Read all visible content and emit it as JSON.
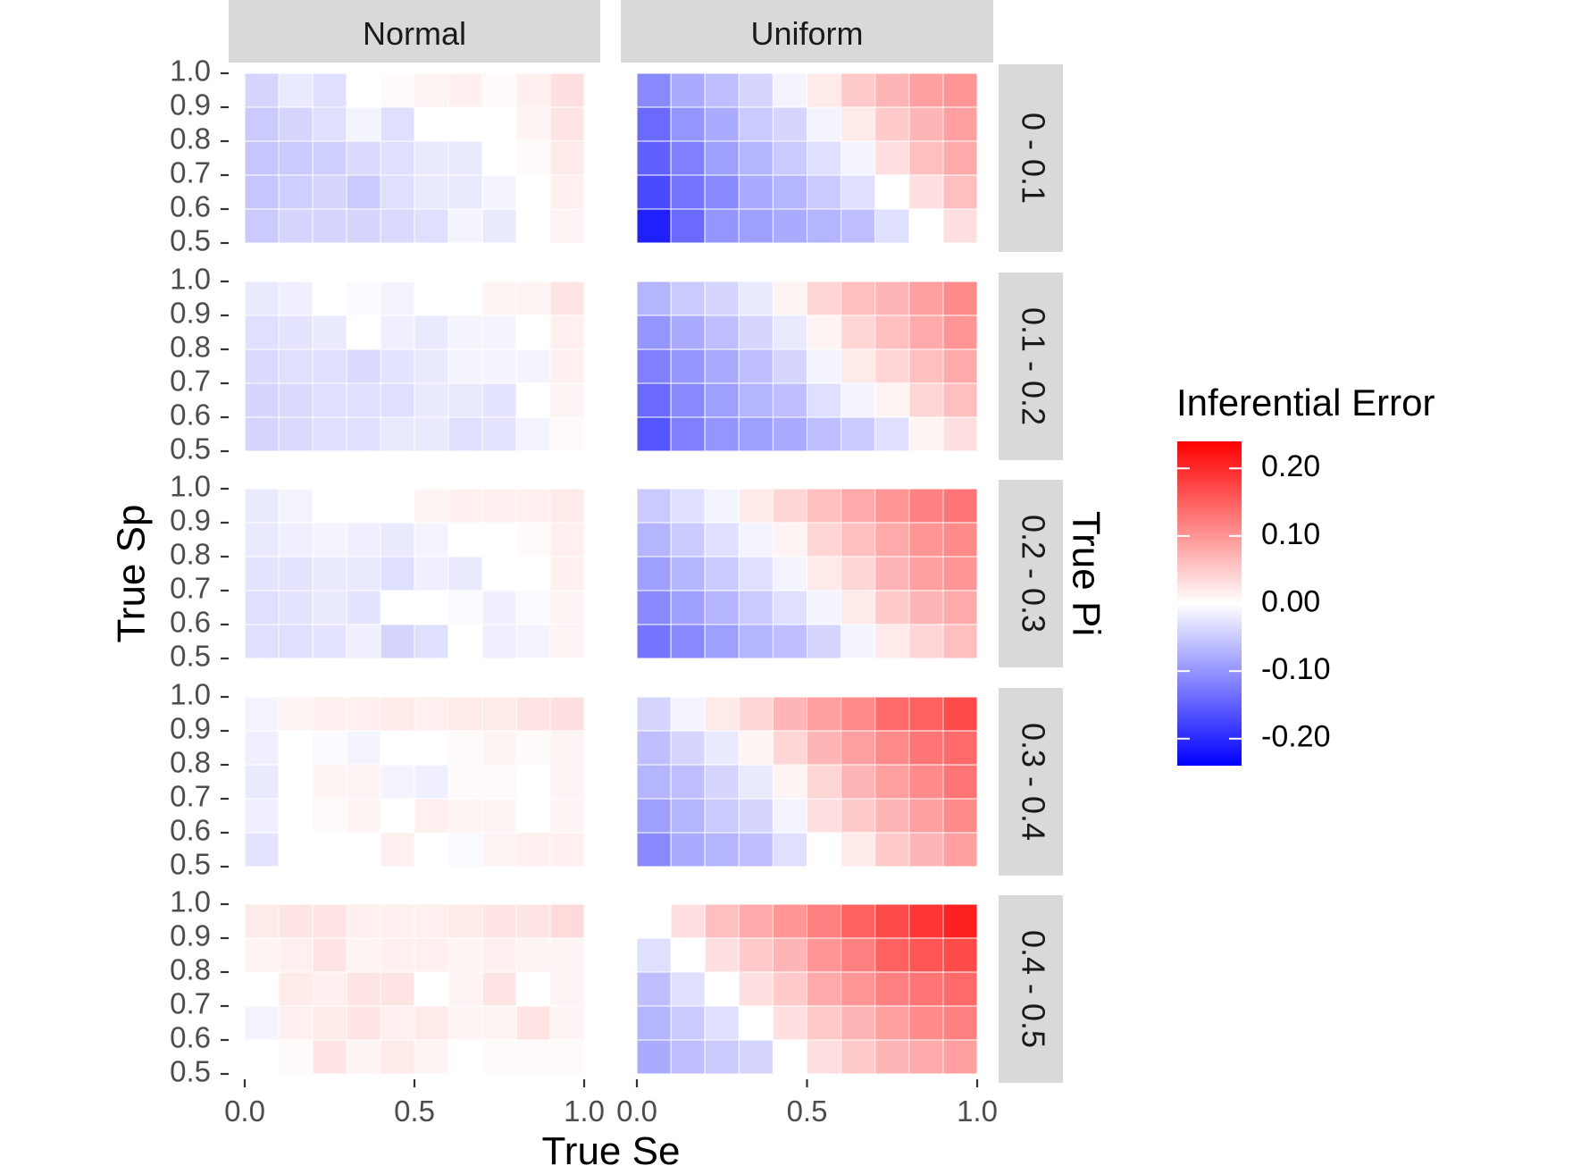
{
  "chart_data": {
    "type": "heatmap",
    "xlabel": "True Se",
    "ylabel": "True Sp",
    "facet_row_label": "True Pi",
    "facet_columns": [
      "Normal",
      "Uniform"
    ],
    "facet_rows": [
      "0 - 0.1",
      "0.1 - 0.2",
      "0.2 - 0.3",
      "0.3 - 0.4",
      "0.4 - 0.5"
    ],
    "x_ticks": [
      "0.0",
      "0.5",
      "1.0"
    ],
    "y_ticks": [
      "0.5",
      "0.6",
      "0.7",
      "0.8",
      "0.9",
      "1.0"
    ],
    "x_values": [
      0.0,
      0.1,
      0.2,
      0.3,
      0.4,
      0.5,
      0.6,
      0.7,
      0.8,
      0.9
    ],
    "y_values": [
      0.5,
      0.6,
      0.7,
      0.8,
      0.9
    ],
    "xlim": [
      0,
      1
    ],
    "ylim": [
      0.5,
      1.0
    ],
    "legend": {
      "title": "Inferential Error",
      "position": "right",
      "range": [
        -0.24,
        0.24
      ],
      "breaks": [
        "0.20",
        "0.10",
        "0.00",
        "-0.10",
        "-0.20"
      ],
      "break_values": [
        0.2,
        0.1,
        0.0,
        -0.1,
        -0.2
      ],
      "low_color": "#0000FF",
      "mid_color": "#FFFFFF",
      "high_color": "#FF0000"
    },
    "panels": [
      {
        "column": "Normal",
        "row": "0 - 0.1",
        "values": [
          [
            -0.05,
            -0.04,
            -0.04,
            -0.04,
            -0.035,
            -0.03,
            -0.01,
            -0.02,
            0.0,
            0.01
          ],
          [
            -0.055,
            -0.045,
            -0.04,
            -0.05,
            -0.03,
            -0.02,
            -0.02,
            -0.01,
            0.0,
            0.015
          ],
          [
            -0.055,
            -0.05,
            -0.045,
            -0.035,
            -0.03,
            -0.02,
            -0.02,
            0.0,
            0.005,
            0.02
          ],
          [
            -0.05,
            -0.04,
            -0.03,
            -0.01,
            -0.03,
            0.0,
            0.0,
            0.0,
            0.01,
            0.025
          ],
          [
            -0.04,
            -0.02,
            -0.03,
            0.0,
            0.005,
            0.01,
            0.015,
            0.005,
            0.015,
            0.03
          ]
        ]
      },
      {
        "column": "Uniform",
        "row": "0 - 0.1",
        "values": [
          [
            -0.21,
            -0.14,
            -0.1,
            -0.09,
            -0.08,
            -0.07,
            -0.06,
            -0.03,
            0.0,
            0.03
          ],
          [
            -0.17,
            -0.13,
            -0.11,
            -0.08,
            -0.07,
            -0.05,
            -0.03,
            0.0,
            0.03,
            0.06
          ],
          [
            -0.15,
            -0.12,
            -0.09,
            -0.07,
            -0.05,
            -0.03,
            -0.01,
            0.03,
            0.06,
            0.08
          ],
          [
            -0.14,
            -0.1,
            -0.08,
            -0.05,
            -0.04,
            -0.01,
            0.02,
            0.05,
            0.07,
            0.09
          ],
          [
            -0.11,
            -0.08,
            -0.06,
            -0.04,
            -0.01,
            0.02,
            0.05,
            0.07,
            0.09,
            0.1
          ]
        ]
      },
      {
        "column": "Normal",
        "row": "0.1 - 0.2",
        "values": [
          [
            -0.04,
            -0.035,
            -0.03,
            -0.03,
            -0.02,
            -0.02,
            -0.03,
            -0.025,
            -0.01,
            0.005
          ],
          [
            -0.04,
            -0.035,
            -0.03,
            -0.03,
            -0.03,
            -0.02,
            -0.02,
            -0.025,
            0.0,
            0.01
          ],
          [
            -0.035,
            -0.03,
            -0.03,
            -0.035,
            -0.025,
            -0.02,
            -0.01,
            -0.01,
            -0.01,
            0.015
          ],
          [
            -0.03,
            -0.025,
            -0.02,
            0.0,
            -0.015,
            -0.02,
            -0.01,
            -0.01,
            0.0,
            0.015
          ],
          [
            -0.02,
            -0.015,
            0.0,
            -0.005,
            -0.01,
            0.0,
            0.0,
            0.01,
            0.01,
            0.025
          ]
        ]
      },
      {
        "column": "Uniform",
        "row": "0.1 - 0.2",
        "values": [
          [
            -0.16,
            -0.12,
            -0.1,
            -0.09,
            -0.08,
            -0.06,
            -0.05,
            -0.03,
            0.01,
            0.03
          ],
          [
            -0.14,
            -0.11,
            -0.09,
            -0.07,
            -0.06,
            -0.03,
            -0.01,
            0.01,
            0.04,
            0.06
          ],
          [
            -0.12,
            -0.1,
            -0.08,
            -0.06,
            -0.04,
            -0.01,
            0.02,
            0.04,
            0.06,
            0.08
          ],
          [
            -0.1,
            -0.08,
            -0.06,
            -0.04,
            -0.02,
            0.01,
            0.04,
            0.06,
            0.08,
            0.1
          ],
          [
            -0.07,
            -0.05,
            -0.04,
            -0.02,
            0.01,
            0.04,
            0.06,
            0.07,
            0.09,
            0.11
          ]
        ]
      },
      {
        "column": "Normal",
        "row": "0.2 - 0.3",
        "values": [
          [
            -0.03,
            -0.03,
            -0.025,
            -0.015,
            -0.04,
            -0.03,
            0.0,
            -0.015,
            -0.01,
            0.01
          ],
          [
            -0.03,
            -0.025,
            -0.02,
            -0.025,
            0.0,
            0.0,
            -0.005,
            -0.015,
            -0.005,
            0.01
          ],
          [
            -0.025,
            -0.025,
            -0.02,
            -0.02,
            -0.03,
            -0.015,
            -0.02,
            0.0,
            0.0,
            0.015
          ],
          [
            -0.02,
            -0.015,
            -0.01,
            -0.015,
            -0.02,
            -0.01,
            0.0,
            0.0,
            0.005,
            0.015
          ],
          [
            -0.02,
            -0.01,
            0.0,
            0.0,
            0.0,
            0.01,
            0.015,
            0.015,
            0.015,
            0.02
          ]
        ]
      },
      {
        "column": "Uniform",
        "row": "0.2 - 0.3",
        "values": [
          [
            -0.13,
            -0.11,
            -0.09,
            -0.07,
            -0.06,
            -0.04,
            -0.01,
            0.02,
            0.04,
            0.06
          ],
          [
            -0.11,
            -0.09,
            -0.07,
            -0.05,
            -0.03,
            -0.01,
            0.02,
            0.05,
            0.07,
            0.08
          ],
          [
            -0.09,
            -0.07,
            -0.05,
            -0.03,
            -0.01,
            0.02,
            0.04,
            0.07,
            0.09,
            0.1
          ],
          [
            -0.07,
            -0.05,
            -0.03,
            -0.01,
            0.01,
            0.04,
            0.06,
            0.08,
            0.1,
            0.11
          ],
          [
            -0.05,
            -0.03,
            -0.01,
            0.02,
            0.04,
            0.06,
            0.08,
            0.1,
            0.12,
            0.13
          ]
        ]
      },
      {
        "column": "Normal",
        "row": "0.3 - 0.4",
        "values": [
          [
            -0.025,
            0.0,
            0.0,
            0.0,
            0.015,
            0.0,
            -0.005,
            0.01,
            0.015,
            0.015
          ],
          [
            -0.015,
            0.0,
            0.005,
            0.01,
            0.0,
            0.015,
            0.01,
            0.01,
            0.0,
            0.01
          ],
          [
            -0.02,
            0.0,
            0.01,
            0.01,
            -0.01,
            -0.015,
            0.005,
            0.005,
            0.0,
            0.01
          ],
          [
            -0.015,
            0.0,
            -0.005,
            -0.01,
            0.0,
            0.0,
            0.005,
            0.01,
            0.005,
            0.01
          ],
          [
            -0.01,
            0.01,
            0.015,
            0.015,
            0.02,
            0.015,
            0.02,
            0.02,
            0.025,
            0.03
          ]
        ]
      },
      {
        "column": "Uniform",
        "row": "0.3 - 0.4",
        "values": [
          [
            -0.11,
            -0.08,
            -0.07,
            -0.06,
            -0.03,
            0.0,
            0.02,
            0.05,
            0.07,
            0.09
          ],
          [
            -0.09,
            -0.07,
            -0.05,
            -0.04,
            -0.01,
            0.03,
            0.05,
            0.07,
            0.09,
            0.11
          ],
          [
            -0.07,
            -0.06,
            -0.04,
            -0.02,
            0.01,
            0.04,
            0.07,
            0.09,
            0.11,
            0.13
          ],
          [
            -0.06,
            -0.04,
            -0.02,
            0.01,
            0.04,
            0.07,
            0.09,
            0.11,
            0.13,
            0.14
          ],
          [
            -0.04,
            -0.01,
            0.02,
            0.04,
            0.07,
            0.09,
            0.11,
            0.14,
            0.15,
            0.17
          ]
        ]
      },
      {
        "column": "Normal",
        "row": "0.4 - 0.5",
        "values": [
          [
            0.0,
            0.005,
            0.025,
            0.01,
            0.02,
            0.01,
            0.0,
            0.005,
            0.005,
            0.005
          ],
          [
            -0.01,
            0.015,
            0.02,
            0.025,
            0.015,
            0.02,
            0.01,
            0.01,
            0.025,
            0.01
          ],
          [
            0.0,
            0.02,
            0.015,
            0.025,
            0.025,
            0.0,
            0.01,
            0.025,
            0.0,
            0.01
          ],
          [
            0.01,
            0.015,
            0.025,
            0.01,
            0.015,
            0.015,
            0.01,
            0.015,
            0.01,
            0.01
          ],
          [
            0.02,
            0.025,
            0.025,
            0.015,
            0.015,
            0.015,
            0.02,
            0.025,
            0.025,
            0.035
          ]
        ]
      },
      {
        "column": "Uniform",
        "row": "0.4 - 0.5",
        "values": [
          [
            -0.08,
            -0.06,
            -0.05,
            -0.04,
            0.0,
            0.03,
            0.05,
            0.07,
            0.08,
            0.09
          ],
          [
            -0.07,
            -0.05,
            -0.03,
            0.0,
            0.03,
            0.05,
            0.07,
            0.09,
            0.11,
            0.12
          ],
          [
            -0.06,
            -0.03,
            0.0,
            0.03,
            0.05,
            0.08,
            0.1,
            0.12,
            0.13,
            0.14
          ],
          [
            -0.03,
            0.0,
            0.03,
            0.05,
            0.07,
            0.1,
            0.12,
            0.15,
            0.16,
            0.17
          ],
          [
            0.0,
            0.03,
            0.06,
            0.08,
            0.1,
            0.12,
            0.15,
            0.17,
            0.19,
            0.21
          ]
        ]
      }
    ]
  }
}
